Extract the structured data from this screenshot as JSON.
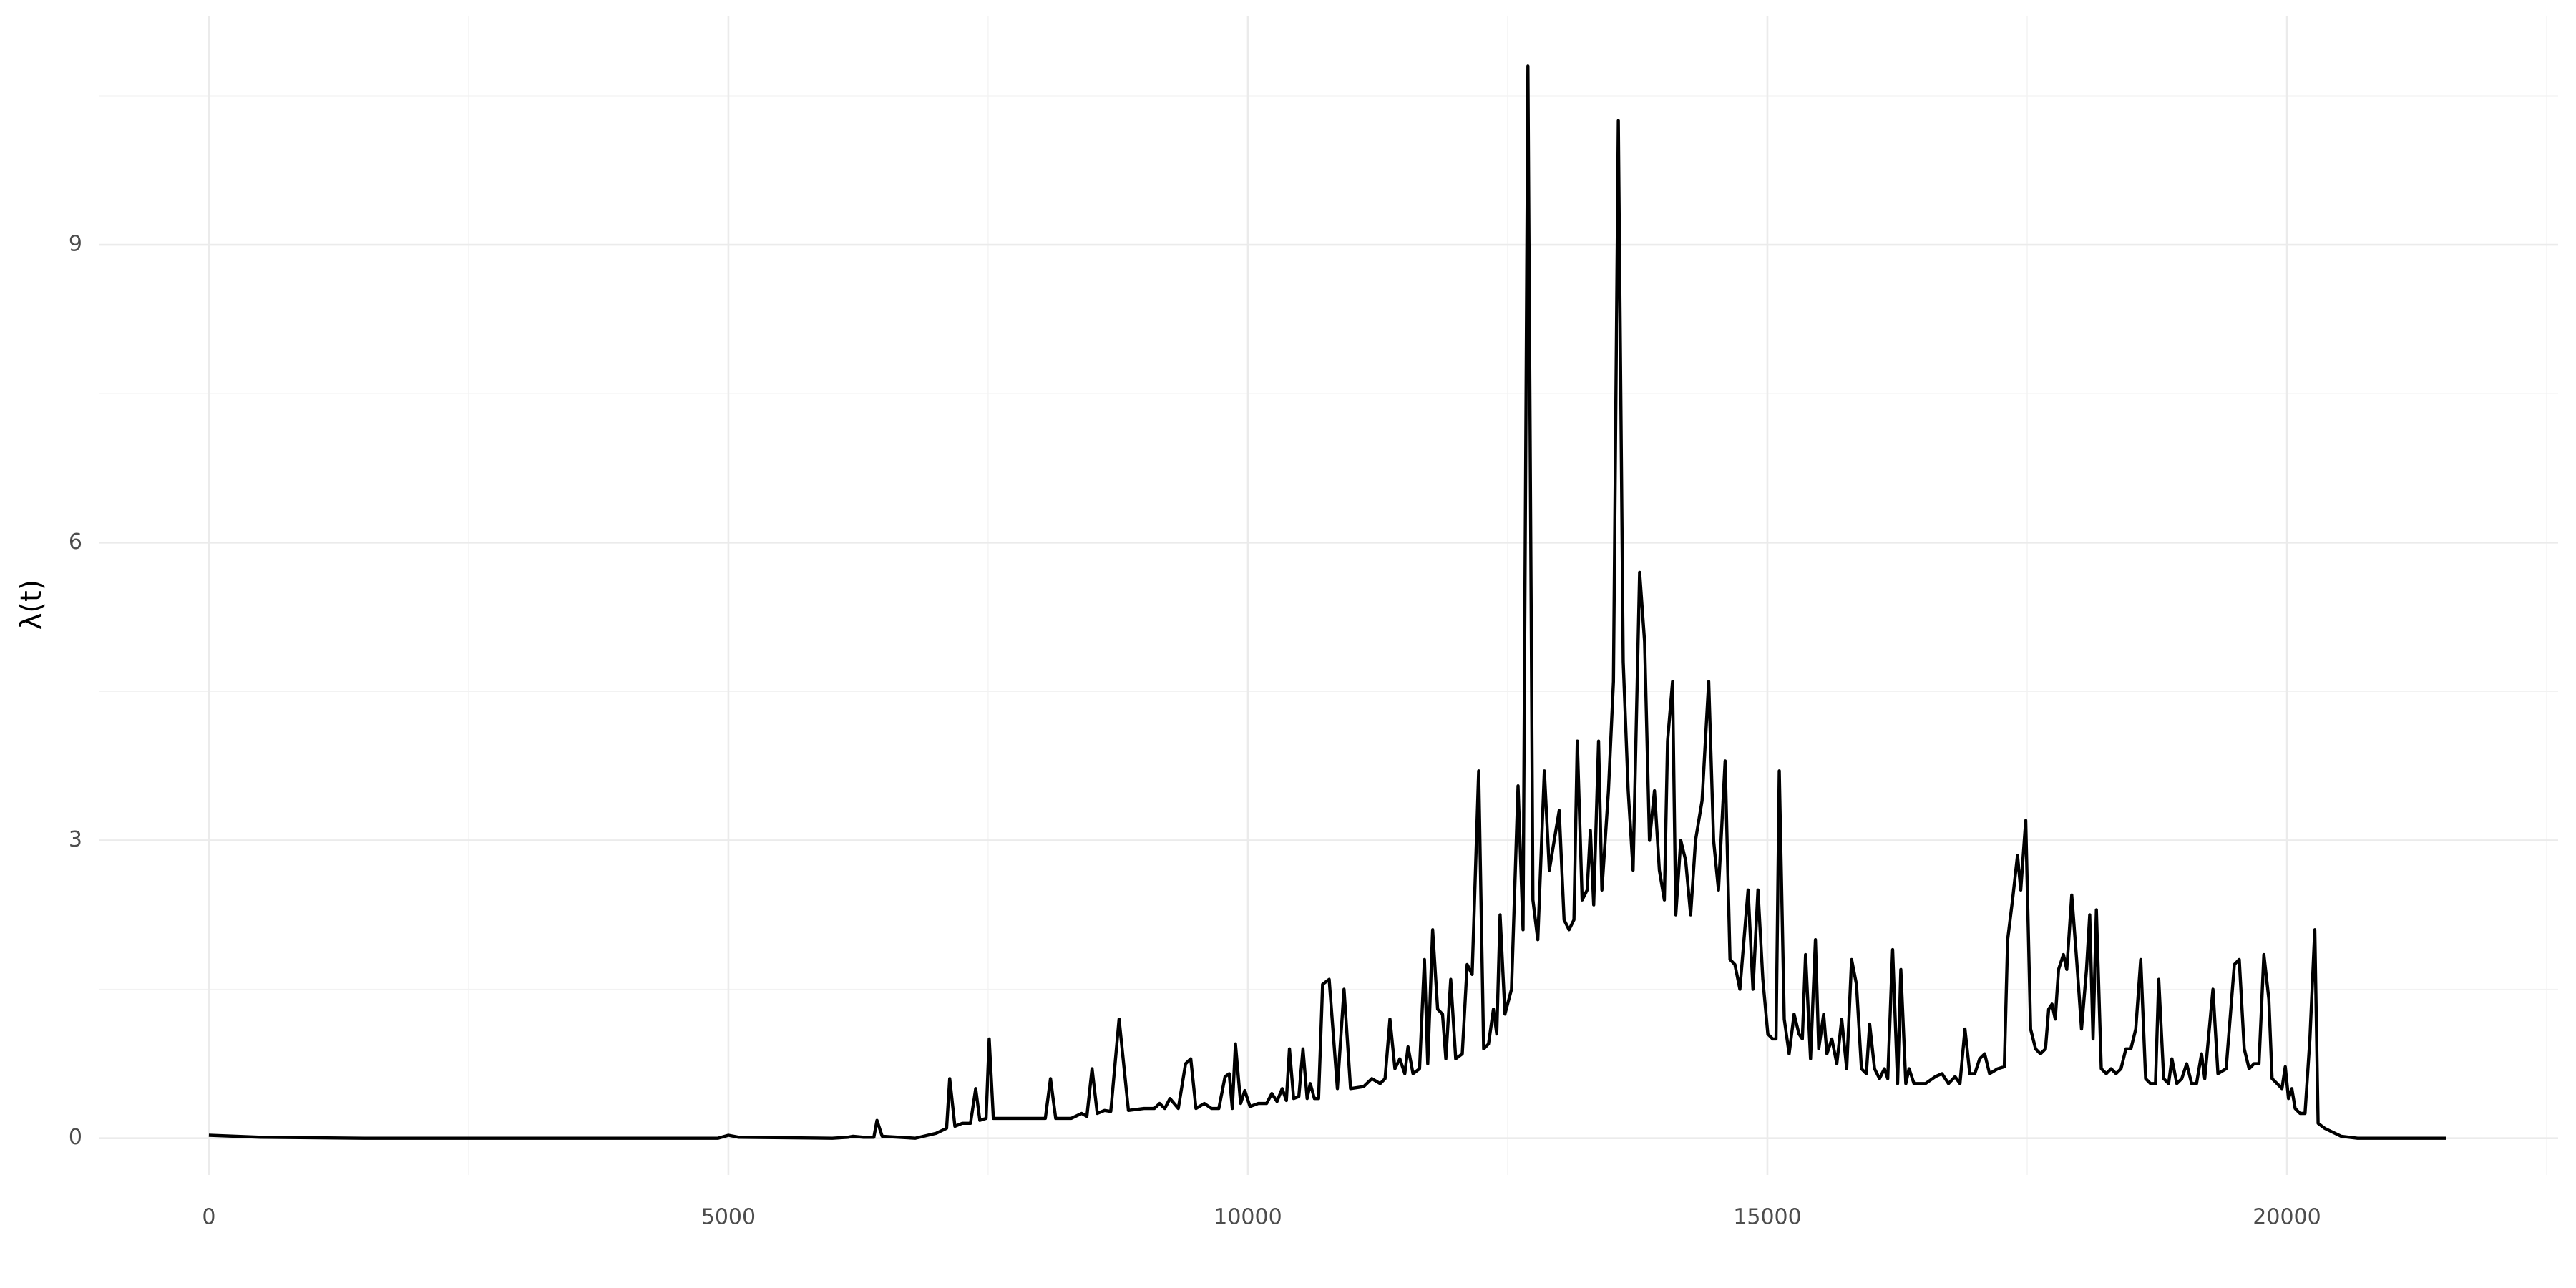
{
  "chart_data": {
    "type": "line",
    "y_label": "λ(t)",
    "color": "#000000",
    "x": [
      0,
      500,
      1500,
      3000,
      4900,
      5000,
      5100,
      6000,
      6150,
      6200,
      6300,
      6400,
      6430,
      6480,
      6800,
      7000,
      7100,
      7130,
      7180,
      7250,
      7330,
      7380,
      7420,
      7480,
      7510,
      7550,
      7700,
      7800,
      8050,
      8100,
      8150,
      8300,
      8400,
      8450,
      8500,
      8550,
      8620,
      8680,
      8760,
      8850,
      9000,
      9100,
      9150,
      9200,
      9250,
      9330,
      9400,
      9450,
      9500,
      9580,
      9650,
      9720,
      9780,
      9820,
      9850,
      9880,
      9930,
      9970,
      10020,
      10100,
      10180,
      10230,
      10280,
      10330,
      10370,
      10400,
      10440,
      10490,
      10530,
      10570,
      10600,
      10640,
      10680,
      10719,
      10782,
      10861,
      10925,
      10988,
      11114,
      11193,
      11273,
      11320,
      11367,
      11415,
      11462,
      11510,
      11541,
      11589,
      11652,
      11699,
      11731,
      11778,
      11826,
      11873,
      11905,
      11952,
      12000,
      12063,
      12110,
      12158,
      12221,
      12269,
      12316,
      12363,
      12395,
      12427,
      12474,
      12537,
      12600,
      12648,
      12695,
      12743,
      12790,
      12853,
      12901,
      12948,
      12996,
      13043,
      13091,
      13138,
      13170,
      13217,
      13265,
      13296,
      13328,
      13375,
      13407,
      13470,
      13518,
      13565,
      13612,
      13660,
      13707,
      13770,
      13818,
      13865,
      13913,
      13960,
      14008,
      14039,
      14087,
      14118,
      14166,
      14213,
      14261,
      14308,
      14371,
      14435,
      14482,
      14529,
      14593,
      14640,
      14687,
      14735,
      14814,
      14861,
      14909,
      14956,
      15004,
      15051,
      15083,
      15114,
      15162,
      15209,
      15257,
      15304,
      15336,
      15367,
      15415,
      15462,
      15494,
      15541,
      15573,
      15620,
      15668,
      15715,
      15763,
      15810,
      15857,
      15905,
      15952,
      15984,
      16031,
      16079,
      16126,
      16158,
      16205,
      16253,
      16284,
      16332,
      16363,
      16411,
      16521,
      16616,
      16680,
      16743,
      16806,
      16853,
      16901,
      16948,
      16996,
      17043,
      17091,
      17138,
      17217,
      17280,
      17312,
      17359,
      17407,
      17438,
      17486,
      17533,
      17581,
      17628,
      17676,
      17707,
      17739,
      17770,
      17802,
      17849,
      17881,
      17929,
      17976,
      18023,
      18071,
      18102,
      18134,
      18166,
      18213,
      18261,
      18308,
      18355,
      18403,
      18450,
      18498,
      18545,
      18593,
      18640,
      18687,
      18735,
      18766,
      18814,
      18861,
      18893,
      18940,
      18988,
      19035,
      19083,
      19130,
      19178,
      19209,
      19288,
      19336,
      19415,
      19494,
      19541,
      19589,
      19636,
      19683,
      19731,
      19778,
      19826,
      19857,
      19905,
      19952,
      19984,
      20015,
      20047,
      20079,
      20126,
      20174,
      20221,
      20268,
      20300,
      20363,
      20521,
      20680,
      21533
    ],
    "values": [
      0.03,
      0.01,
      0.0,
      0.0,
      0.0,
      0.03,
      0.01,
      0.0,
      0.01,
      0.02,
      0.01,
      0.01,
      0.18,
      0.02,
      0.0,
      0.05,
      0.1,
      0.6,
      0.12,
      0.15,
      0.15,
      0.5,
      0.18,
      0.2,
      1.0,
      0.2,
      0.2,
      0.2,
      0.2,
      0.6,
      0.2,
      0.2,
      0.25,
      0.22,
      0.7,
      0.25,
      0.28,
      0.27,
      1.2,
      0.28,
      0.3,
      0.3,
      0.35,
      0.3,
      0.4,
      0.3,
      0.75,
      0.8,
      0.3,
      0.35,
      0.3,
      0.3,
      0.62,
      0.65,
      0.3,
      0.95,
      0.35,
      0.48,
      0.32,
      0.35,
      0.35,
      0.45,
      0.37,
      0.5,
      0.38,
      0.9,
      0.4,
      0.42,
      0.9,
      0.4,
      0.55,
      0.4,
      0.4,
      1.55,
      1.6,
      0.5,
      1.5,
      0.5,
      0.52,
      0.6,
      0.55,
      0.6,
      1.2,
      0.7,
      0.8,
      0.65,
      0.92,
      0.65,
      0.7,
      1.8,
      0.75,
      2.1,
      1.3,
      1.25,
      0.8,
      1.6,
      0.8,
      0.85,
      1.75,
      1.65,
      3.7,
      0.9,
      0.95,
      1.3,
      1.05,
      2.25,
      1.25,
      1.5,
      3.55,
      2.1,
      10.8,
      2.4,
      2.0,
      3.7,
      2.7,
      3.0,
      3.3,
      2.2,
      2.1,
      2.2,
      4.0,
      2.4,
      2.5,
      3.1,
      2.35,
      4.0,
      2.5,
      3.5,
      4.6,
      10.25,
      4.8,
      3.5,
      2.7,
      5.7,
      5.0,
      3.0,
      3.5,
      2.7,
      2.4,
      4.0,
      4.6,
      2.25,
      3.0,
      2.8,
      2.25,
      3.0,
      3.4,
      4.6,
      3.0,
      2.5,
      3.8,
      1.8,
      1.75,
      1.5,
      2.5,
      1.5,
      2.5,
      1.6,
      1.05,
      1.0,
      1.0,
      3.7,
      1.2,
      0.85,
      1.25,
      1.05,
      1.0,
      1.85,
      0.8,
      2.0,
      0.9,
      1.25,
      0.85,
      1.0,
      0.75,
      1.2,
      0.7,
      1.8,
      1.55,
      0.7,
      0.65,
      1.15,
      0.7,
      0.6,
      0.7,
      0.6,
      1.9,
      0.55,
      1.7,
      0.55,
      0.7,
      0.55,
      0.55,
      0.62,
      0.65,
      0.55,
      0.62,
      0.55,
      1.1,
      0.65,
      0.65,
      0.8,
      0.85,
      0.65,
      0.7,
      0.72,
      2.0,
      2.4,
      2.85,
      2.5,
      3.2,
      1.1,
      0.9,
      0.85,
      0.9,
      1.3,
      1.35,
      1.2,
      1.7,
      1.85,
      1.7,
      2.45,
      1.8,
      1.1,
      1.7,
      2.25,
      1.0,
      2.3,
      0.7,
      0.65,
      0.7,
      0.65,
      0.7,
      0.9,
      0.9,
      1.1,
      1.8,
      0.6,
      0.55,
      0.55,
      1.6,
      0.6,
      0.55,
      0.8,
      0.55,
      0.6,
      0.75,
      0.55,
      0.55,
      0.85,
      0.6,
      1.5,
      0.65,
      0.7,
      1.75,
      1.8,
      0.9,
      0.7,
      0.75,
      0.75,
      1.85,
      1.4,
      0.6,
      0.55,
      0.5,
      0.72,
      0.4,
      0.5,
      0.3,
      0.25,
      0.25,
      1.0,
      2.1,
      0.15,
      0.1,
      0.02,
      0.0,
      0.0
    ],
    "xlim": [
      -1060,
      22610
    ],
    "ylim": [
      -0.37,
      11.3
    ],
    "xticks": [
      0,
      5000,
      10000,
      15000,
      20000
    ],
    "yticks": [
      0,
      3,
      6,
      9
    ],
    "x_minor_breaks": [
      2500,
      7500,
      12500,
      17500,
      22500
    ],
    "y_minor_breaks": [
      1.5,
      4.5,
      7.5,
      10.5
    ],
    "grid": true
  }
}
